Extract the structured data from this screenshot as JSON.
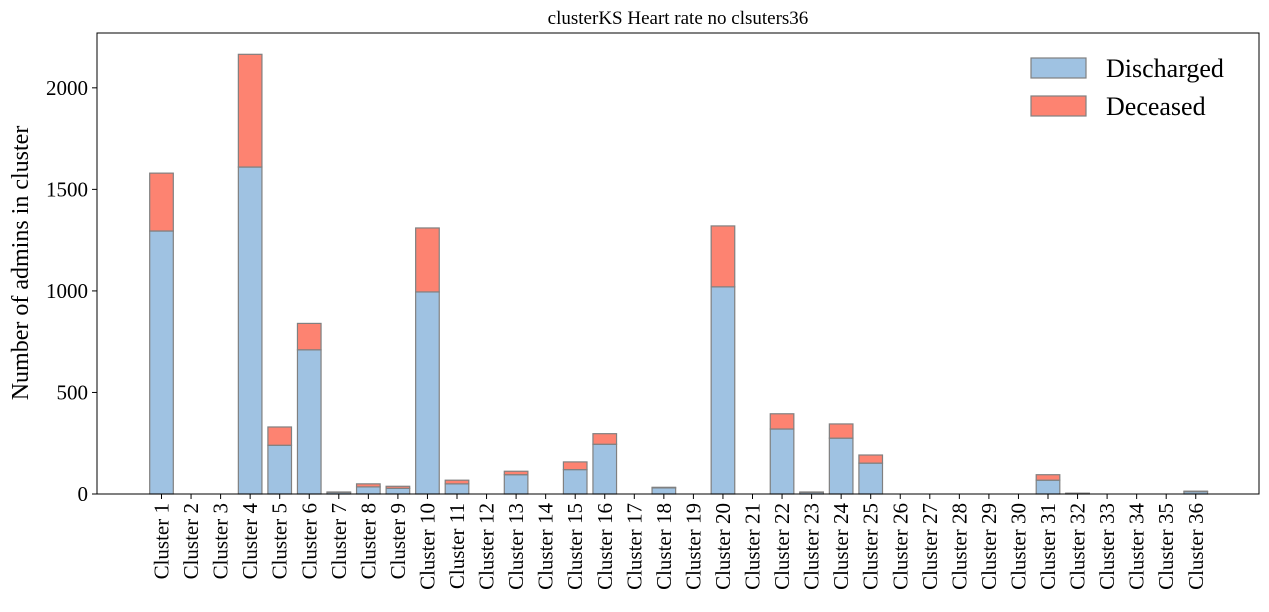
{
  "chart_data": {
    "type": "bar",
    "stacked": true,
    "title": "clusterKS Heart rate no clsuters36",
    "xlabel": "",
    "ylabel": "Number of admins in cluster",
    "ylim": [
      0,
      2270
    ],
    "yticks": [
      0,
      500,
      1000,
      1500,
      2000
    ],
    "grid": false,
    "legend_position": "top-right",
    "categories": [
      "Cluster 1",
      "Cluster 2",
      "Cluster 3",
      "Cluster 4",
      "Cluster 5",
      "Cluster 6",
      "Cluster 7",
      "Cluster 8",
      "Cluster 9",
      "Cluster 10",
      "Cluster 11",
      "Cluster 12",
      "Cluster 13",
      "Cluster 14",
      "Cluster 15",
      "Cluster 16",
      "Cluster 17",
      "Cluster 18",
      "Cluster 19",
      "Cluster 20",
      "Cluster 21",
      "Cluster 22",
      "Cluster 23",
      "Cluster 24",
      "Cluster 25",
      "Cluster 26",
      "Cluster 27",
      "Cluster 28",
      "Cluster 29",
      "Cluster 30",
      "Cluster 31",
      "Cluster 32",
      "Cluster 33",
      "Cluster 34",
      "Cluster 35",
      "Cluster 36"
    ],
    "series": [
      {
        "name": "Discharged",
        "color": "#9fc2e2",
        "values": [
          1295,
          0,
          0,
          1610,
          240,
          710,
          8,
          35,
          28,
          995,
          50,
          0,
          95,
          0,
          120,
          245,
          0,
          30,
          0,
          1020,
          0,
          320,
          8,
          275,
          152,
          0,
          0,
          0,
          0,
          0,
          68,
          3,
          0,
          0,
          0,
          12
        ]
      },
      {
        "name": "Deceased",
        "color": "#fd8371",
        "values": [
          285,
          0,
          0,
          555,
          90,
          130,
          2,
          15,
          10,
          315,
          18,
          0,
          17,
          0,
          38,
          52,
          0,
          3,
          0,
          300,
          0,
          75,
          2,
          70,
          40,
          0,
          0,
          0,
          0,
          0,
          27,
          1,
          0,
          0,
          0,
          2
        ]
      }
    ]
  }
}
